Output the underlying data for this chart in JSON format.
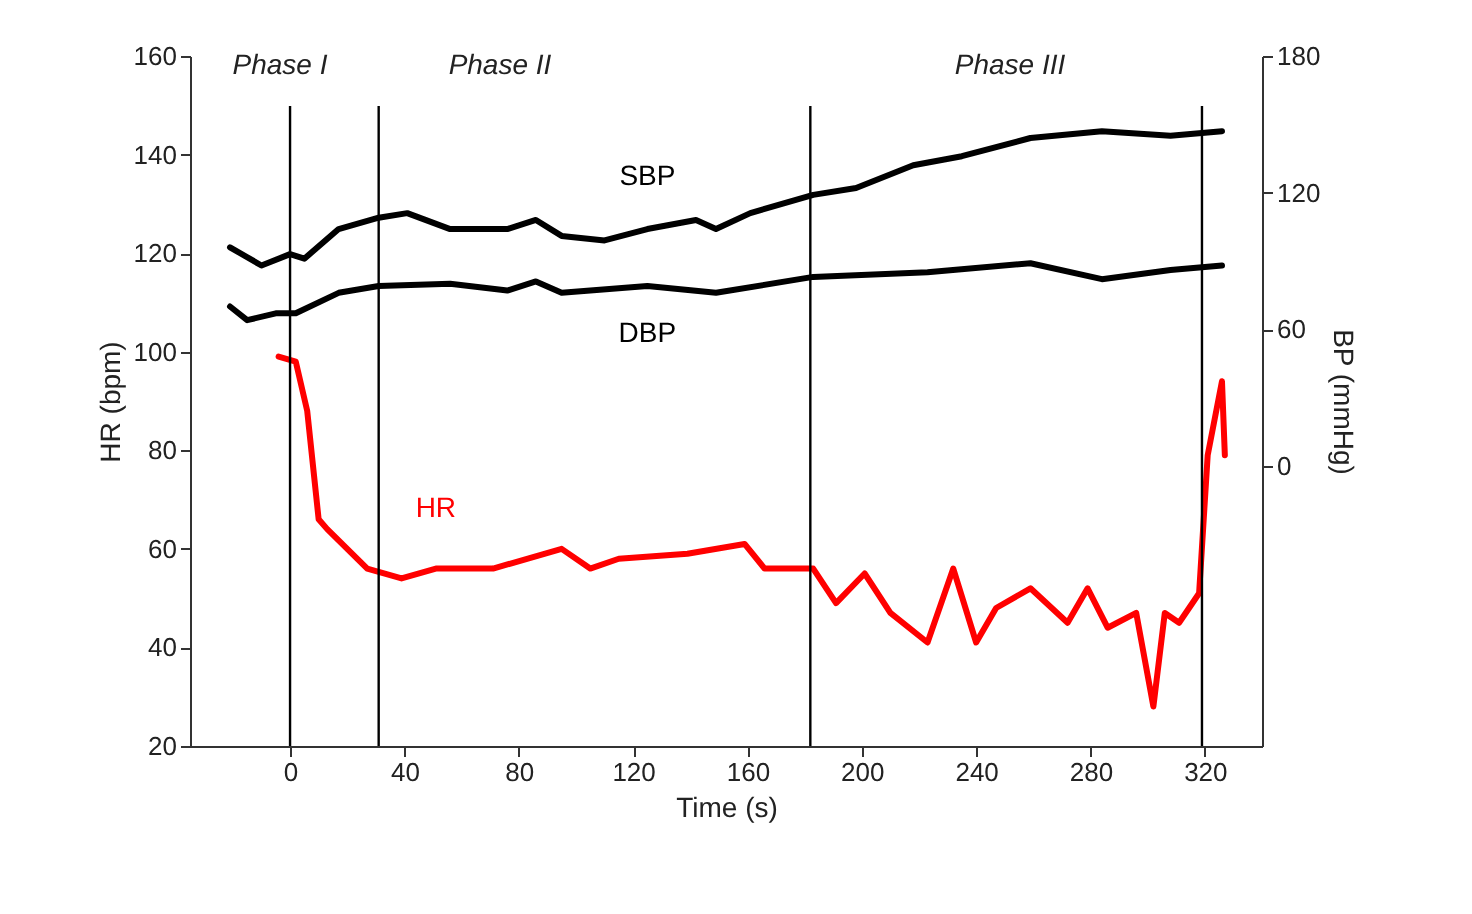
{
  "chart_data": {
    "type": "line",
    "xlabel": "Time (s)",
    "ylabel": "HR (bpm)",
    "y2label": "BP (mmHg)",
    "xlim": [
      -35,
      340
    ],
    "xticks": [
      0,
      40,
      80,
      120,
      160,
      200,
      240,
      280,
      320
    ],
    "ylim": [
      20,
      160
    ],
    "yticks": [
      20,
      40,
      60,
      80,
      100,
      120,
      140,
      160
    ],
    "y2lim": [
      -123,
      180
    ],
    "y2ticks": [
      0,
      60,
      120,
      180
    ],
    "grid": false,
    "marker": "none",
    "line_style": "solid",
    "annotations": [
      "Phase I",
      "Phase II",
      "Phase III"
    ],
    "ref_lines": [
      {
        "axis": "x",
        "value": 0,
        "color": "#000000"
      },
      {
        "axis": "x",
        "value": 31,
        "color": "#000000"
      },
      {
        "axis": "x",
        "value": 182,
        "color": "#000000"
      },
      {
        "axis": "x",
        "value": 319,
        "color": "#000000"
      }
    ],
    "series": [
      {
        "name": "SBP",
        "color": "#000000",
        "axis": "y2",
        "x": [
          -21,
          -10,
          0,
          5,
          17,
          31,
          41,
          56,
          76,
          86,
          95,
          110,
          125,
          142,
          149,
          161,
          183,
          198,
          218,
          235,
          259,
          284,
          308,
          326
        ],
        "values": [
          96,
          88,
          93,
          91,
          104,
          109,
          111,
          104,
          104,
          108,
          101,
          99,
          104,
          108,
          104,
          111,
          119,
          122,
          132,
          136,
          144,
          147,
          145,
          147
        ]
      },
      {
        "name": "DBP",
        "color": "#000000",
        "axis": "y2",
        "x": [
          -21,
          -15,
          -5,
          2,
          17,
          31,
          56,
          76,
          86,
          95,
          125,
          149,
          183,
          223,
          259,
          284,
          308,
          326
        ],
        "values": [
          70,
          64,
          67,
          67,
          76,
          79,
          80,
          77,
          81,
          76,
          79,
          76,
          83,
          85,
          89,
          82,
          86,
          88
        ]
      },
      {
        "name": "HR",
        "color": "#ff0000",
        "x": [
          -4,
          2,
          6,
          10,
          13,
          27,
          39,
          51,
          71,
          95,
          105,
          115,
          139,
          159,
          166,
          183,
          191,
          201,
          210,
          223,
          232,
          240,
          247,
          259,
          272,
          279,
          286,
          296,
          302,
          306,
          311,
          318,
          321,
          326,
          327
        ],
        "values": [
          99,
          98,
          88,
          66,
          64,
          56,
          54,
          56,
          56,
          60,
          56,
          58,
          59,
          61,
          56,
          56,
          49,
          55,
          47,
          41,
          56,
          41,
          48,
          52,
          45,
          52,
          44,
          47,
          28,
          47,
          45,
          51,
          79,
          94,
          79
        ]
      }
    ]
  }
}
